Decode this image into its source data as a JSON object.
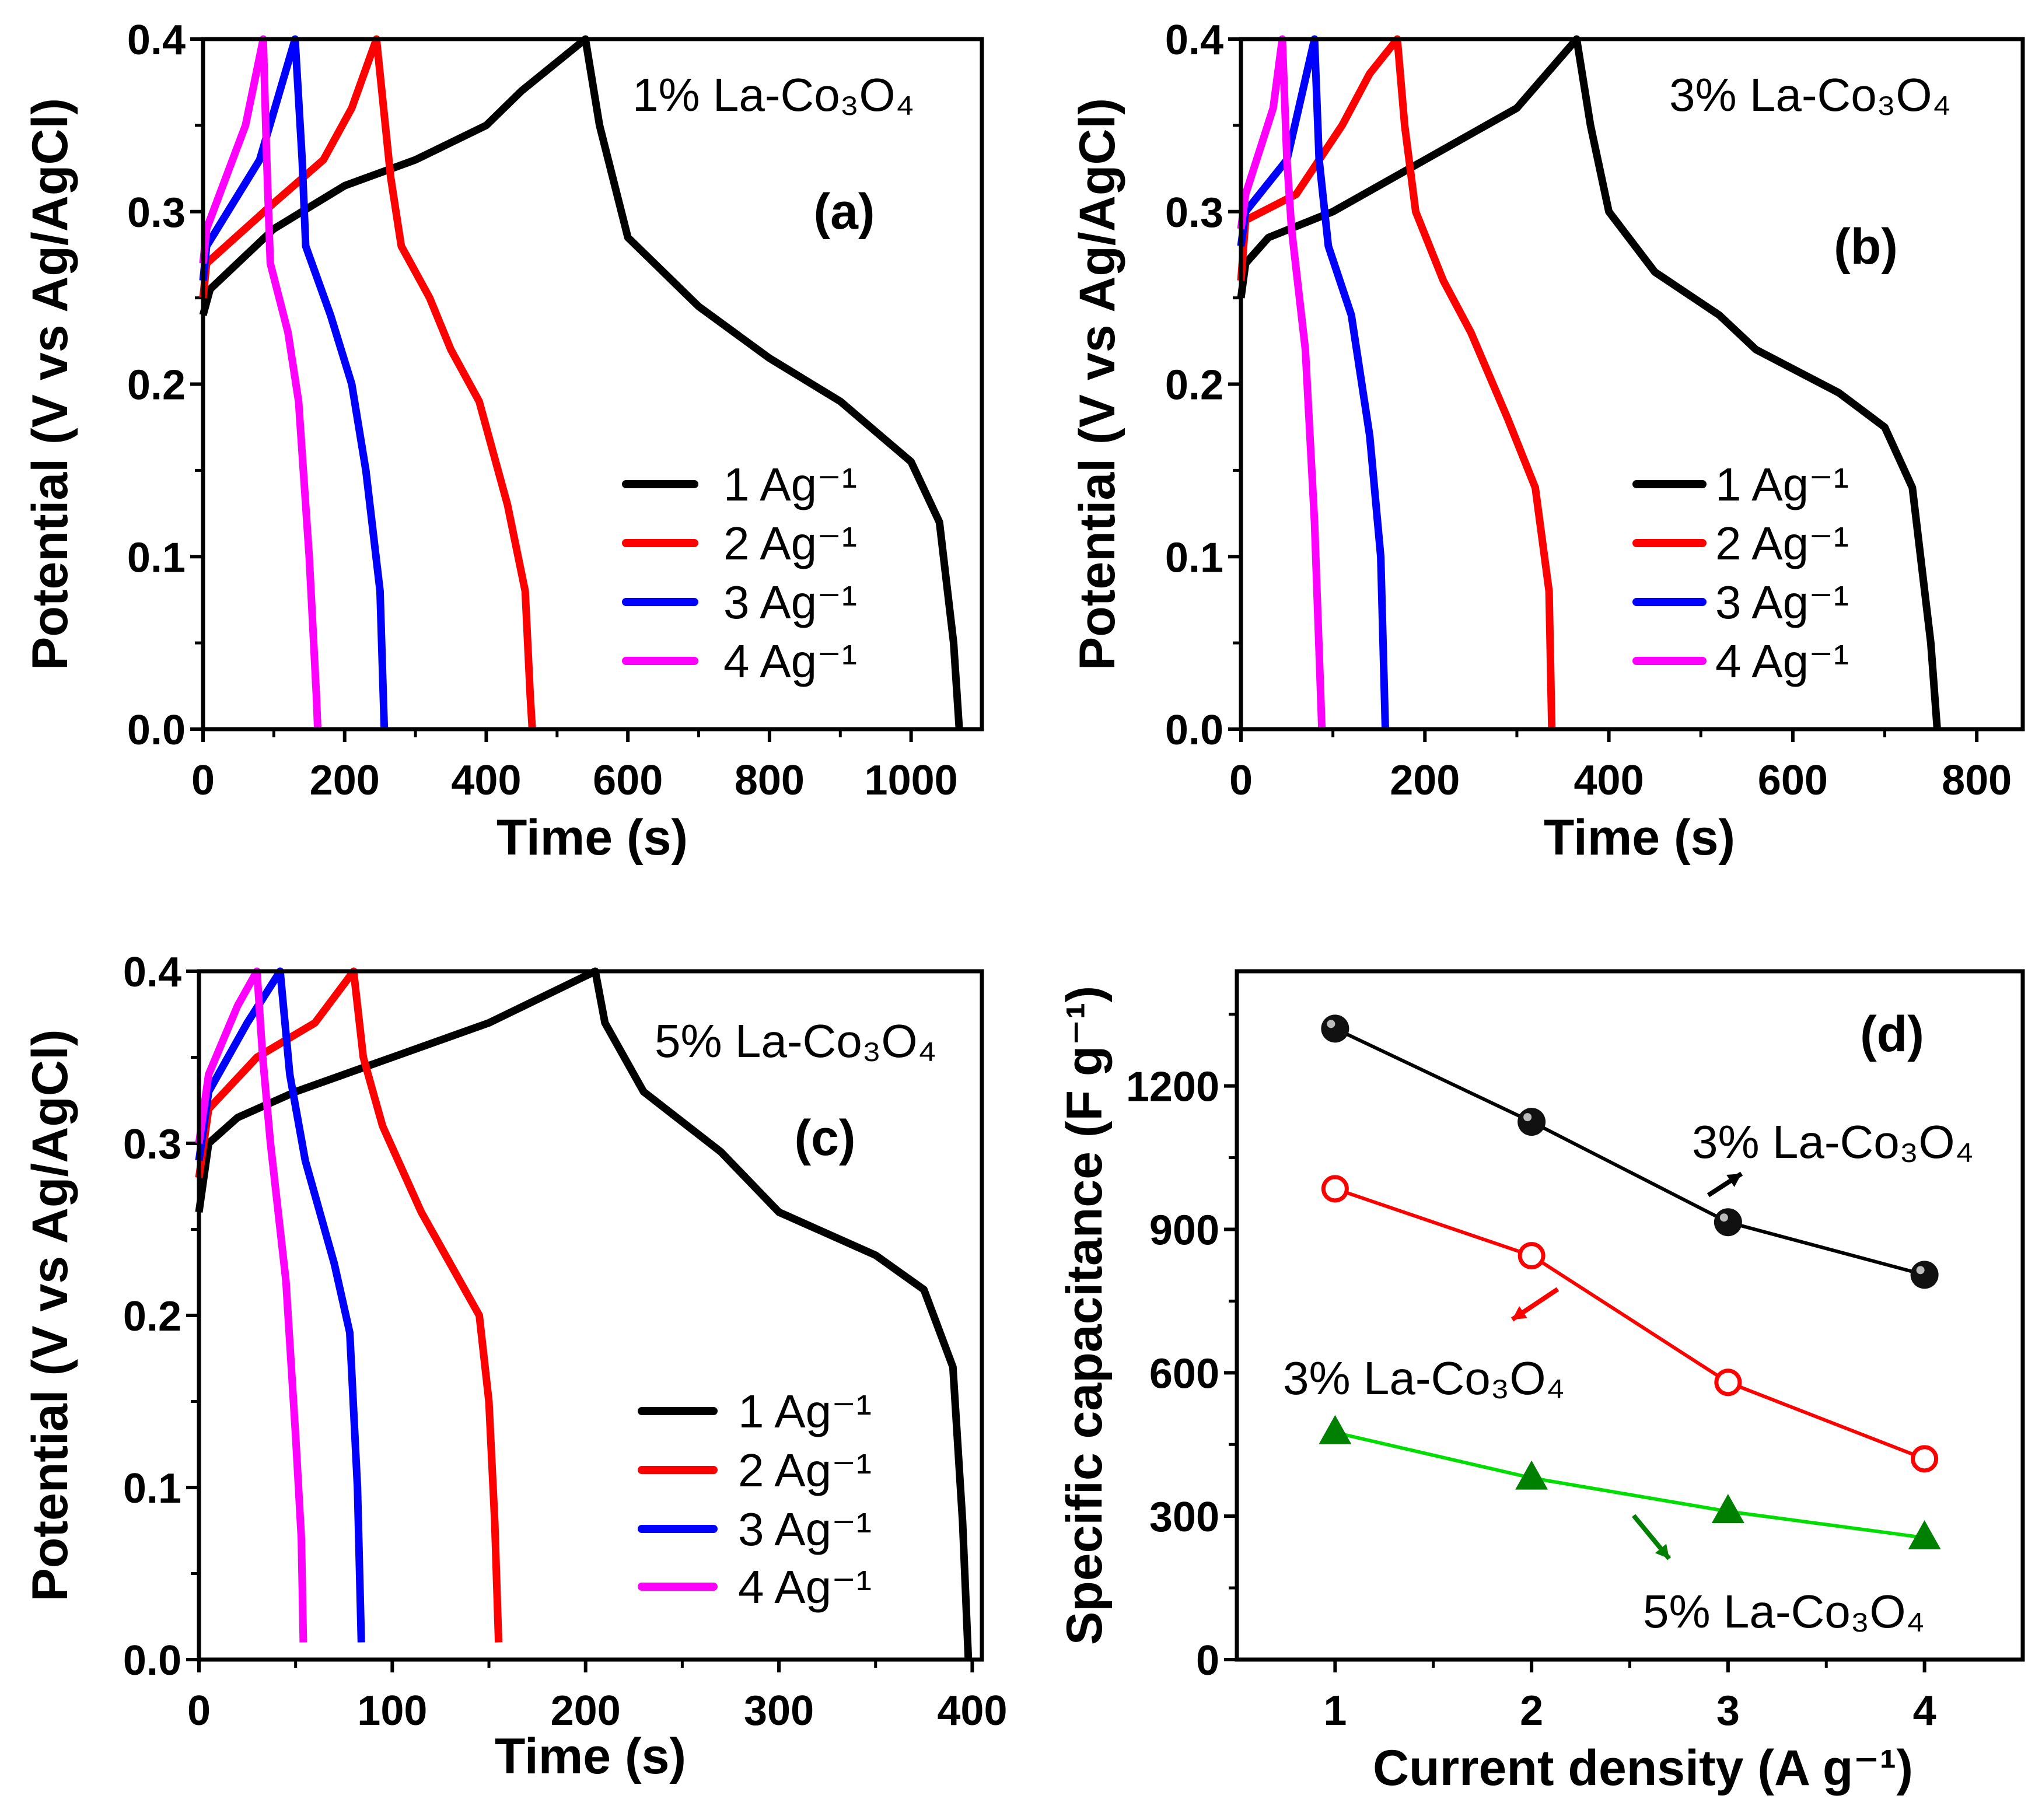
{
  "chart_data": [
    {
      "type": "line",
      "panel_label": "(a)",
      "title": "1% La-Co₃O₄",
      "xlabel": "Time (s)",
      "ylabel": "Potential (V vs Ag/AgCl)",
      "xlim": [
        0,
        1100
      ],
      "ylim": [
        0,
        0.4
      ],
      "xticks": [
        0,
        200,
        400,
        600,
        800,
        1000
      ],
      "yticks": [
        0.0,
        0.1,
        0.2,
        0.3,
        0.4
      ],
      "ytick_labels": [
        "0.0",
        "0.1",
        "0.2",
        "0.3",
        "0.4"
      ],
      "legend_position": "center-right",
      "series": [
        {
          "name": "1 Ag⁻¹",
          "color": "#000000",
          "points": [
            [
              0,
              0.24
            ],
            [
              10,
              0.255
            ],
            [
              100,
              0.29
            ],
            [
              200,
              0.315
            ],
            [
              300,
              0.33
            ],
            [
              400,
              0.35
            ],
            [
              450,
              0.37
            ],
            [
              540,
              0.4
            ],
            [
              560,
              0.35
            ],
            [
              600,
              0.285
            ],
            [
              700,
              0.245
            ],
            [
              800,
              0.215
            ],
            [
              900,
              0.19
            ],
            [
              1000,
              0.155
            ],
            [
              1040,
              0.12
            ],
            [
              1060,
              0.05
            ],
            [
              1068,
              0
            ]
          ]
        },
        {
          "name": "2 Ag⁻¹",
          "color": "#ff0000",
          "points": [
            [
              0,
              0.25
            ],
            [
              5,
              0.27
            ],
            [
              100,
              0.305
            ],
            [
              170,
              0.33
            ],
            [
              210,
              0.36
            ],
            [
              245,
              0.4
            ],
            [
              265,
              0.32
            ],
            [
              280,
              0.28
            ],
            [
              320,
              0.25
            ],
            [
              350,
              0.22
            ],
            [
              390,
              0.19
            ],
            [
              430,
              0.13
            ],
            [
              455,
              0.08
            ],
            [
              462,
              0.02
            ],
            [
              465,
              0
            ]
          ]
        },
        {
          "name": "3 Ag⁻¹",
          "color": "#0000ff",
          "points": [
            [
              0,
              0.26
            ],
            [
              5,
              0.28
            ],
            [
              80,
              0.33
            ],
            [
              130,
              0.4
            ],
            [
              140,
              0.33
            ],
            [
              145,
              0.28
            ],
            [
              180,
              0.24
            ],
            [
              210,
              0.2
            ],
            [
              230,
              0.15
            ],
            [
              250,
              0.08
            ],
            [
              256,
              0
            ]
          ]
        },
        {
          "name": "4 Ag⁻¹",
          "color": "#ff00ff",
          "points": [
            [
              0,
              0.27
            ],
            [
              5,
              0.29
            ],
            [
              60,
              0.35
            ],
            [
              85,
              0.4
            ],
            [
              90,
              0.33
            ],
            [
              95,
              0.27
            ],
            [
              120,
              0.23
            ],
            [
              135,
              0.19
            ],
            [
              150,
              0.1
            ],
            [
              160,
              0.02
            ],
            [
              162,
              0
            ]
          ]
        }
      ]
    },
    {
      "type": "line",
      "panel_label": "(b)",
      "title": "3% La-Co₃O₄",
      "xlabel": "Time (s)",
      "ylabel": "Potential (V vs Ag/AgCl)",
      "xlim": [
        0,
        850
      ],
      "ylim": [
        0,
        0.4
      ],
      "xticks": [
        0,
        200,
        400,
        600,
        800
      ],
      "yticks": [
        0.0,
        0.1,
        0.2,
        0.3,
        0.4
      ],
      "ytick_labels": [
        "0.0",
        "0.1",
        "0.2",
        "0.3",
        "0.4"
      ],
      "legend_position": "center-right",
      "series": [
        {
          "name": "1 Ag⁻¹",
          "color": "#000000",
          "points": [
            [
              0,
              0.25
            ],
            [
              5,
              0.27
            ],
            [
              30,
              0.285
            ],
            [
              100,
              0.3
            ],
            [
              200,
              0.33
            ],
            [
              300,
              0.36
            ],
            [
              365,
              0.4
            ],
            [
              380,
              0.35
            ],
            [
              400,
              0.3
            ],
            [
              450,
              0.265
            ],
            [
              520,
              0.24
            ],
            [
              560,
              0.22
            ],
            [
              650,
              0.195
            ],
            [
              700,
              0.175
            ],
            [
              730,
              0.14
            ],
            [
              750,
              0.05
            ],
            [
              757,
              0
            ]
          ]
        },
        {
          "name": "2 Ag⁻¹",
          "color": "#ff0000",
          "points": [
            [
              0,
              0.26
            ],
            [
              5,
              0.295
            ],
            [
              60,
              0.31
            ],
            [
              110,
              0.35
            ],
            [
              140,
              0.38
            ],
            [
              170,
              0.4
            ],
            [
              178,
              0.35
            ],
            [
              190,
              0.3
            ],
            [
              220,
              0.26
            ],
            [
              250,
              0.23
            ],
            [
              290,
              0.18
            ],
            [
              320,
              0.14
            ],
            [
              335,
              0.08
            ],
            [
              338,
              0
            ]
          ]
        },
        {
          "name": "3 Ag⁻¹",
          "color": "#0000ff",
          "points": [
            [
              0,
              0.28
            ],
            [
              5,
              0.3
            ],
            [
              50,
              0.33
            ],
            [
              80,
              0.4
            ],
            [
              85,
              0.33
            ],
            [
              95,
              0.28
            ],
            [
              120,
              0.24
            ],
            [
              140,
              0.17
            ],
            [
              152,
              0.1
            ],
            [
              157,
              0
            ]
          ]
        },
        {
          "name": "4 Ag⁻¹",
          "color": "#ff00ff",
          "points": [
            [
              0,
              0.29
            ],
            [
              5,
              0.31
            ],
            [
              35,
              0.36
            ],
            [
              45,
              0.4
            ],
            [
              50,
              0.33
            ],
            [
              55,
              0.29
            ],
            [
              70,
              0.22
            ],
            [
              80,
              0.12
            ],
            [
              88,
              0
            ]
          ]
        }
      ]
    },
    {
      "type": "line",
      "panel_label": "(c)",
      "title": "5% La-Co₃O₄",
      "xlabel": "Time (s)",
      "ylabel": "Potential (V vs Ag/AgCl)",
      "xlim": [
        0,
        405
      ],
      "ylim": [
        0,
        0.4
      ],
      "xticks": [
        0,
        100,
        200,
        300,
        400
      ],
      "yticks": [
        0.0,
        0.1,
        0.2,
        0.3,
        0.4
      ],
      "ytick_labels": [
        "0.0",
        "0.1",
        "0.2",
        "0.3",
        "0.4"
      ],
      "legend_position": "bottom-right",
      "series": [
        {
          "name": "1 Ag⁻¹",
          "color": "#000000",
          "points": [
            [
              0,
              0.26
            ],
            [
              5,
              0.3
            ],
            [
              20,
              0.315
            ],
            [
              50,
              0.33
            ],
            [
              100,
              0.35
            ],
            [
              150,
              0.37
            ],
            [
              205,
              0.4
            ],
            [
              210,
              0.37
            ],
            [
              230,
              0.33
            ],
            [
              270,
              0.295
            ],
            [
              300,
              0.26
            ],
            [
              350,
              0.235
            ],
            [
              375,
              0.215
            ],
            [
              390,
              0.17
            ],
            [
              395,
              0.08
            ],
            [
              398,
              0
            ]
          ]
        },
        {
          "name": "2 Ag⁻¹",
          "color": "#ff0000",
          "points": [
            [
              0,
              0.28
            ],
            [
              5,
              0.32
            ],
            [
              30,
              0.35
            ],
            [
              60,
              0.37
            ],
            [
              80,
              0.4
            ],
            [
              85,
              0.35
            ],
            [
              95,
              0.31
            ],
            [
              115,
              0.26
            ],
            [
              130,
              0.23
            ],
            [
              145,
              0.2
            ],
            [
              150,
              0.15
            ],
            [
              153,
              0.08
            ],
            [
              155,
              0.01
            ]
          ]
        },
        {
          "name": "3 Ag⁻¹",
          "color": "#0000ff",
          "points": [
            [
              0,
              0.29
            ],
            [
              5,
              0.33
            ],
            [
              25,
              0.37
            ],
            [
              42,
              0.4
            ],
            [
              47,
              0.34
            ],
            [
              55,
              0.29
            ],
            [
              70,
              0.23
            ],
            [
              78,
              0.19
            ],
            [
              82,
              0.1
            ],
            [
              84,
              0.01
            ]
          ]
        },
        {
          "name": "4 Ag⁻¹",
          "color": "#ff00ff",
          "points": [
            [
              0,
              0.3
            ],
            [
              5,
              0.34
            ],
            [
              20,
              0.38
            ],
            [
              30,
              0.4
            ],
            [
              33,
              0.35
            ],
            [
              37,
              0.3
            ],
            [
              45,
              0.22
            ],
            [
              50,
              0.13
            ],
            [
              53,
              0.07
            ],
            [
              54,
              0.01
            ]
          ]
        }
      ]
    },
    {
      "type": "line",
      "panel_label": "(d)",
      "xlabel": "Current density (A g⁻¹)",
      "ylabel": "Specific capacitance (F g⁻¹)",
      "xlim": [
        0.5,
        4.5
      ],
      "ylim": [
        0,
        1440
      ],
      "xticks": [
        1,
        2,
        3,
        4
      ],
      "yticks": [
        0,
        300,
        600,
        900,
        1200
      ],
      "ytick_labels": [
        "0",
        "300",
        "600",
        "900",
        "1200"
      ],
      "categories": [
        1,
        2,
        3,
        4
      ],
      "series": [
        {
          "name": "3% La-Co₃O₄",
          "color": "#000000",
          "marker": "filled-circle",
          "values": [
            1320,
            1125,
            915,
            805
          ]
        },
        {
          "name": "3% La-Co₃O₄",
          "color": "#ff0000",
          "marker": "open-circle",
          "values": [
            985,
            845,
            580,
            420
          ]
        },
        {
          "name": "5% La-Co₃O₄",
          "color": "#00dd00",
          "marker_color": "#008000",
          "marker": "triangle",
          "values": [
            475,
            380,
            310,
            255
          ]
        }
      ]
    }
  ]
}
